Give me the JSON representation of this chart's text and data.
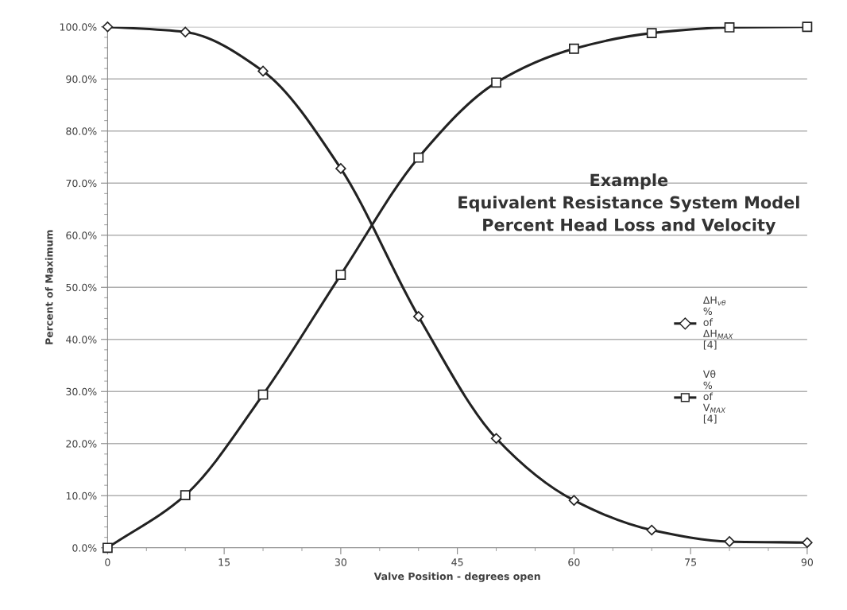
{
  "chart_data": {
    "type": "line",
    "title": "Example\nEquivalent Resistance System Model\nPercent Head Loss and Velocity",
    "xlabel": "Valve Position - degrees open",
    "ylabel": "Percent of Maximum",
    "x": [
      0,
      10,
      20,
      30,
      40,
      50,
      60,
      70,
      80,
      90
    ],
    "series": [
      {
        "name": "ΔH$_{vθ}$ % of ΔH$_{MAX}$ [4]",
        "color": "#222222",
        "marker": "diamond",
        "values": [
          100,
          99.0,
          91.5,
          72.8,
          44.4,
          21.0,
          9.1,
          3.4,
          1.2,
          1.0
        ]
      },
      {
        "name": "Vθ % of V$_{MAX}$ [4]",
        "color": "#222222",
        "marker": "square",
        "values": [
          0,
          10.1,
          29.4,
          52.4,
          74.9,
          89.3,
          95.8,
          98.8,
          99.9,
          100
        ]
      }
    ],
    "xlim": [
      0,
      90
    ],
    "xticks": [
      0,
      15,
      30,
      45,
      60,
      75,
      90
    ],
    "ylim": [
      0,
      100
    ],
    "yticks": [
      {
        "value": 0,
        "label": "0.0%"
      },
      {
        "value": 10,
        "label": "10.0%"
      },
      {
        "value": 20,
        "label": "20.0%"
      },
      {
        "value": 30,
        "label": "30.0%"
      },
      {
        "value": 40,
        "label": "40.0%"
      },
      {
        "value": 50,
        "label": "50.0%"
      },
      {
        "value": 60,
        "label": "60.0%"
      },
      {
        "value": 70,
        "label": "70.0%"
      },
      {
        "value": 80,
        "label": "80.0%"
      },
      {
        "value": 90,
        "label": "90.0%"
      },
      {
        "value": 100,
        "label": "100.0%"
      }
    ],
    "grid": "y",
    "legend": "right",
    "line_style": "solid"
  }
}
